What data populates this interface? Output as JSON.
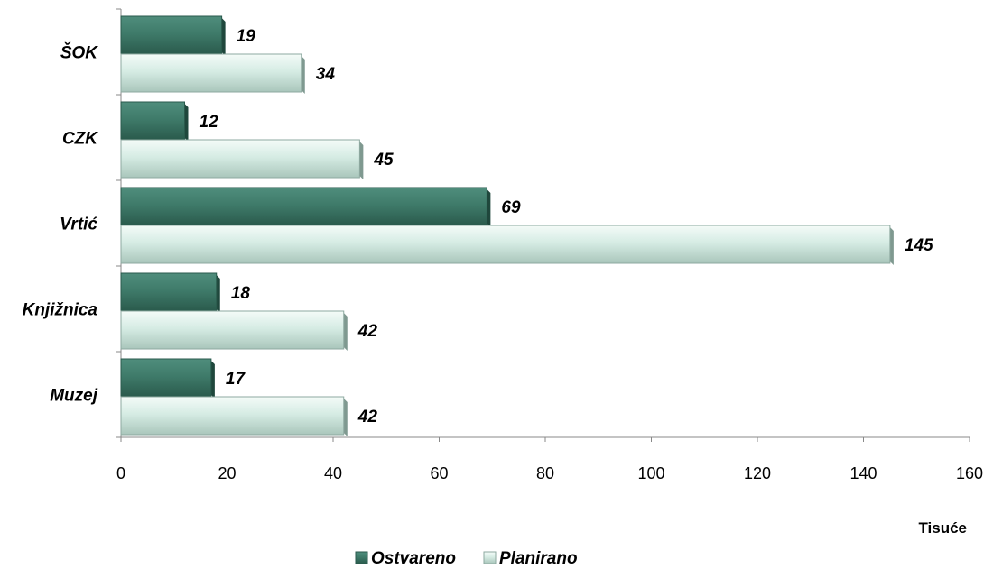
{
  "chart_data": {
    "type": "bar",
    "orientation": "horizontal",
    "categories": [
      "ŠOK",
      "CZK",
      "Vrtić",
      "Knjižnica",
      "Muzej"
    ],
    "series": [
      {
        "name": "Ostvareno",
        "values": [
          19,
          12,
          69,
          18,
          17
        ],
        "color": "#3f7b6a"
      },
      {
        "name": "Planirano",
        "values": [
          34,
          45,
          145,
          42,
          42
        ],
        "color": "#d6ece4"
      }
    ],
    "xlim": [
      0,
      160
    ],
    "xticks": [
      "0",
      "20",
      "40",
      "60",
      "80",
      "100",
      "120",
      "140",
      "160"
    ],
    "xlabel": "Tisuće",
    "ylabel": "",
    "title": "",
    "grid": false,
    "legend_position": "bottom",
    "data_labels": true
  }
}
